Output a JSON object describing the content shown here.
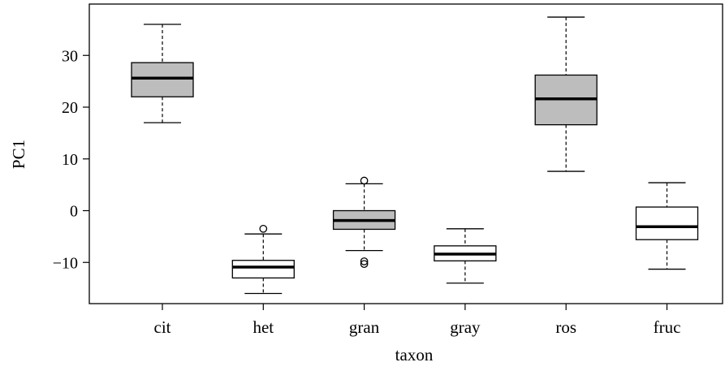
{
  "chart_data": {
    "type": "boxplot",
    "xlabel": "taxon",
    "ylabel": "PC1",
    "ylim": [
      -18,
      40
    ],
    "yticks": [
      -10,
      0,
      10,
      20,
      30
    ],
    "ytick_labels": [
      "−10",
      "0",
      "10",
      "20",
      "30"
    ],
    "categories": [
      "cit",
      "het",
      "gran",
      "gray",
      "ros",
      "fruc"
    ],
    "boxes": [
      {
        "category": "cit",
        "fill": "#bdbdbd",
        "whisker_low": 17,
        "q1": 22,
        "median": 25.6,
        "q3": 28.6,
        "whisker_high": 36,
        "outliers": []
      },
      {
        "category": "het",
        "fill": "#ffffff",
        "whisker_low": -16,
        "q1": -13,
        "median": -10.9,
        "q3": -9.6,
        "whisker_high": -4.5,
        "outliers": [
          -3.5
        ]
      },
      {
        "category": "gran",
        "fill": "#bdbdbd",
        "whisker_low": -7.7,
        "q1": -3.6,
        "median": -1.9,
        "q3": 0,
        "whisker_high": 5.2,
        "outliers": [
          5.8,
          -9.8,
          -10.3
        ]
      },
      {
        "category": "gray",
        "fill": "#ffffff",
        "whisker_low": -14,
        "q1": -9.7,
        "median": -8.4,
        "q3": -6.8,
        "whisker_high": -3.5,
        "outliers": []
      },
      {
        "category": "ros",
        "fill": "#bdbdbd",
        "whisker_low": 7.6,
        "q1": 16.6,
        "median": 21.6,
        "q3": 26.2,
        "whisker_high": 37.4,
        "outliers": []
      },
      {
        "category": "fruc",
        "fill": "#ffffff",
        "whisker_low": -11.3,
        "q1": -5.6,
        "median": -3.1,
        "q3": 0.7,
        "whisker_high": 5.4,
        "outliers": []
      }
    ],
    "legend": "none",
    "grid": false
  }
}
